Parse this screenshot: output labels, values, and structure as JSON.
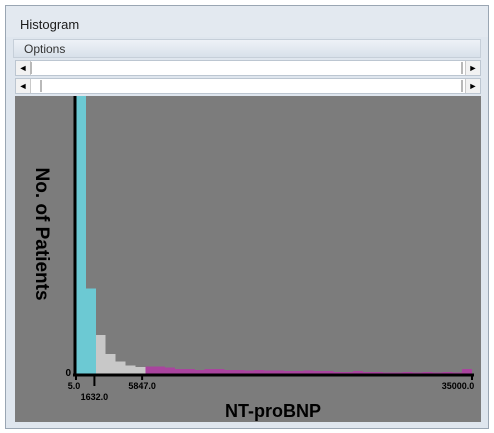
{
  "window": {
    "title": "Histogram"
  },
  "menu": {
    "options_label": "Options"
  },
  "sliders": {
    "top": {
      "left_arrow": "◄",
      "right_arrow": "►"
    },
    "bottom": {
      "left_arrow": "◄",
      "right_arrow": "►"
    }
  },
  "chart_data": {
    "type": "bar",
    "ylabel": "No. of Patients",
    "xlabel": "NT-proBNP",
    "y_zero_label": "0",
    "x_range": [
      5.0,
      35000.0
    ],
    "thresholds": [
      5.0,
      1632.0,
      5847.0,
      35000.0
    ],
    "tick_labels": [
      "5.0",
      "1632.0",
      "5847.0",
      "35000.0"
    ],
    "segment_colors": {
      "low": "#6cc9d3",
      "mid": "#c8c8c8",
      "high": "#a9449e"
    },
    "bin_width": 875,
    "counts": [
      400,
      123,
      56,
      29,
      18,
      12,
      10,
      11,
      11,
      9,
      7,
      7,
      6,
      7,
      7,
      6,
      6,
      5,
      6,
      5,
      5,
      4,
      4,
      5,
      4,
      4,
      3,
      3,
      4,
      3,
      3,
      2,
      2,
      3,
      2,
      3,
      2,
      3,
      2,
      7
    ],
    "ylim": [
      0,
      400
    ]
  }
}
